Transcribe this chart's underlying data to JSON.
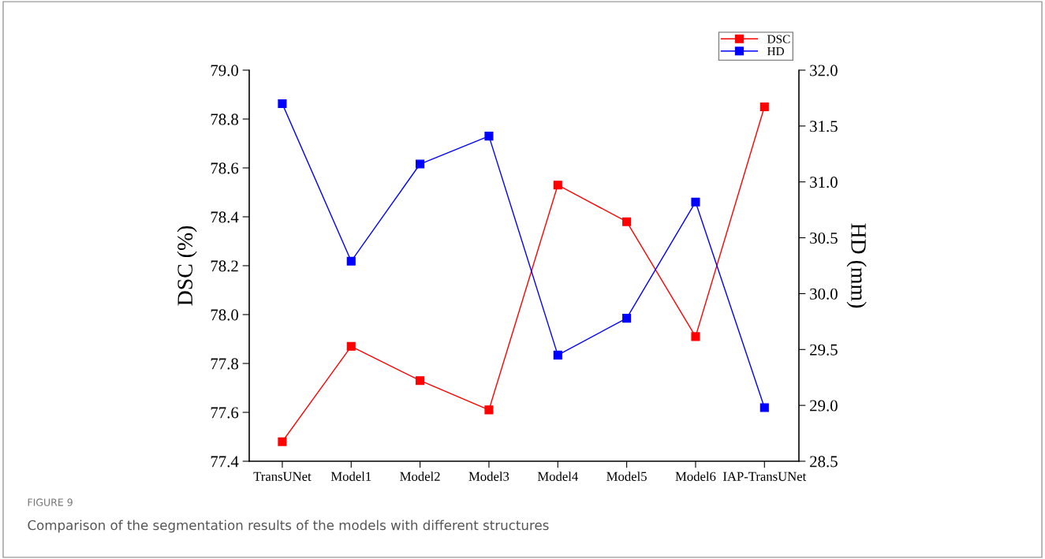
{
  "chart_data": {
    "type": "line",
    "categories": [
      "TransUNet",
      "Model1",
      "Model2",
      "Model3",
      "Model4",
      "Model5",
      "Model6",
      "IAP-TransUNet"
    ],
    "series": [
      {
        "name": "DSC",
        "color": "#ff0000",
        "values": [
          77.48,
          77.87,
          77.73,
          77.61,
          78.53,
          78.38,
          77.91,
          78.85
        ]
      },
      {
        "name": "HD",
        "color": "#0000ff",
        "axis": "y2",
        "values": [
          31.7,
          30.29,
          31.16,
          31.41,
          29.45,
          29.78,
          30.82,
          28.98
        ]
      }
    ],
    "ylabel": "DSC (%)",
    "y2label": "HD (mm)",
    "ylim": [
      77.4,
      79.0
    ],
    "yticks": [
      {
        "value": 77.4,
        "label": "77.4"
      },
      {
        "value": 77.6,
        "label": "77.6"
      },
      {
        "value": 77.8,
        "label": "77.8"
      },
      {
        "value": 78.0,
        "label": "78.0"
      },
      {
        "value": 78.2,
        "label": "78.2"
      },
      {
        "value": 78.4,
        "label": "78.4"
      },
      {
        "value": 78.6,
        "label": "78.6"
      },
      {
        "value": 78.8,
        "label": "78.8"
      },
      {
        "value": 79.0,
        "label": "79.0"
      }
    ],
    "y2lim": [
      28.5,
      32.0
    ],
    "y2ticks": [
      {
        "value": 28.5,
        "label": "28.5"
      },
      {
        "value": 29.0,
        "label": "29.0"
      },
      {
        "value": 29.5,
        "label": "29.5"
      },
      {
        "value": 30.0,
        "label": "30.0"
      },
      {
        "value": 30.5,
        "label": "30.5"
      },
      {
        "value": 31.0,
        "label": "31.0"
      },
      {
        "value": 31.5,
        "label": "31.5"
      },
      {
        "value": 32.0,
        "label": "32.0"
      }
    ],
    "marker": "square",
    "line_style": "solid",
    "grid": false,
    "legend": "top right",
    "annotations": [
      "FIGURE 9",
      "Comparison of the segmentation results of the models with different structures"
    ]
  }
}
